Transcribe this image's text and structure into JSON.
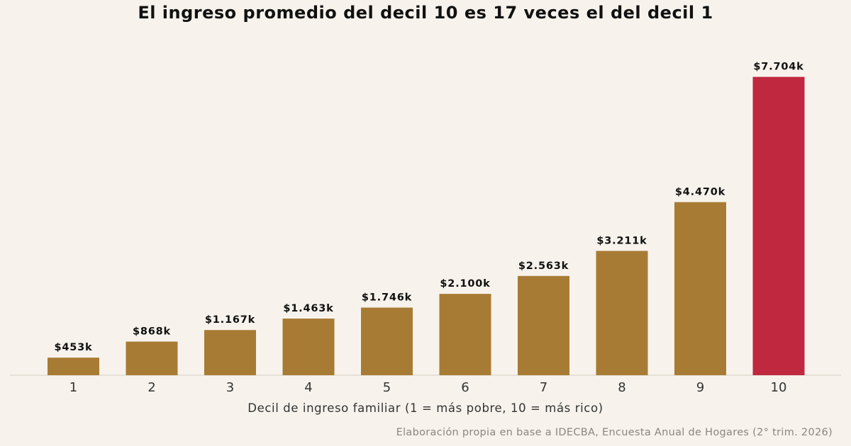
{
  "chart_data": {
    "type": "bar",
    "title": "El ingreso promedio del decil 10 es 17 veces el del decil 1",
    "xlabel": "Decil de ingreso familiar (1 = más pobre, 10 = más rico)",
    "ylabel": "",
    "categories": [
      "1",
      "2",
      "3",
      "4",
      "5",
      "6",
      "7",
      "8",
      "9",
      "10"
    ],
    "values": [
      453,
      868,
      1167,
      1463,
      1746,
      2100,
      2563,
      3211,
      4470,
      7704
    ],
    "value_labels": [
      "$453k",
      "$868k",
      "$1.167k",
      "$1.463k",
      "$1.746k",
      "$2.100k",
      "$2.563k",
      "$3.211k",
      "$4.470k",
      "$7.704k"
    ],
    "ylim": [
      0,
      8000
    ],
    "grid": false,
    "colors": {
      "default": "#a87b35",
      "highlight": "#c0283f",
      "axis": "#dcd6cc",
      "label": "#111111",
      "tick": "#333333"
    },
    "highlight_category": "10",
    "source": "Elaboración propia en base a IDECBA, Encuesta Anual de Hogares (2° trim. 2026)"
  }
}
